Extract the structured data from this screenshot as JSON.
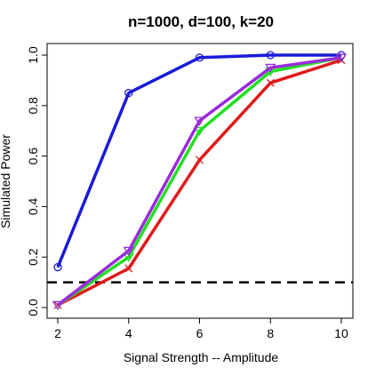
{
  "chart_data": {
    "type": "line",
    "title": "n=1000, d=100, k=20",
    "xlabel": "Signal Strength -- Amplitude",
    "ylabel": "Simulated Power",
    "xlim": [
      2,
      10
    ],
    "ylim": [
      0,
      1
    ],
    "x": [
      2,
      4,
      6,
      8,
      10
    ],
    "x_ticks": [
      "2",
      "4",
      "6",
      "8",
      "10"
    ],
    "y_ticks": [
      "0.0",
      "0.2",
      "0.4",
      "0.6",
      "0.8",
      "1.0"
    ],
    "grid": false,
    "reference_line": {
      "y": 0.1,
      "style": "dashed",
      "color": "#000000"
    },
    "series": [
      {
        "color": "#1a1adb",
        "marker": "circle",
        "values": [
          0.16,
          0.85,
          0.99,
          1.0,
          1.0
        ]
      },
      {
        "color": "#e01a1a",
        "marker": "x",
        "values": [
          0.01,
          0.155,
          0.585,
          0.89,
          0.98
        ]
      },
      {
        "color": "#22e022",
        "marker": "triangle-down",
        "values": [
          0.01,
          0.2,
          0.7,
          0.935,
          0.99
        ]
      },
      {
        "color": "#9a2bdb",
        "marker": "triangle-down",
        "values": [
          0.01,
          0.225,
          0.74,
          0.95,
          0.99
        ]
      }
    ]
  }
}
